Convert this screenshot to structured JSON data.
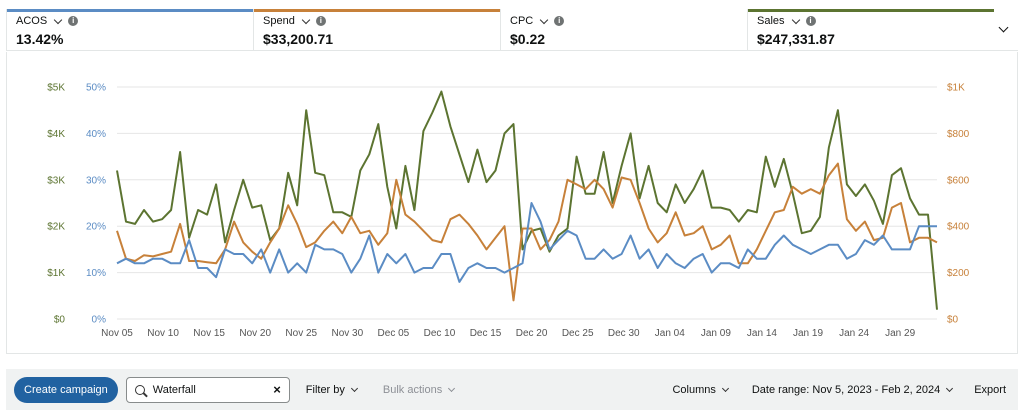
{
  "metrics": [
    {
      "label": "ACOS",
      "value": "13.42%",
      "color": "#5b8cc4"
    },
    {
      "label": "Spend",
      "value": "$33,200.71",
      "color": "#c7813a"
    },
    {
      "label": "CPC",
      "value": "$0.22",
      "color": "#ffffff"
    },
    {
      "label": "Sales",
      "value": "$247,331.87",
      "color": "#5c7431"
    }
  ],
  "info_glyph": "i",
  "chart_data": {
    "type": "line",
    "x_labels": [
      "Nov 05",
      "Nov 10",
      "Nov 15",
      "Nov 20",
      "Nov 25",
      "Nov 30",
      "Dec 05",
      "Dec 10",
      "Dec 15",
      "Dec 20",
      "Dec 25",
      "Dec 30",
      "Jan 04",
      "Jan 09",
      "Jan 14",
      "Jan 19",
      "Jan 24",
      "Jan 29"
    ],
    "x_range": [
      "2023-11-05",
      "2024-02-02"
    ],
    "y_left_ticks": [
      "$0",
      "$1K",
      "$2K",
      "$3K",
      "$4K",
      "$5K"
    ],
    "y_left2_ticks": [
      "0%",
      "10%",
      "20%",
      "30%",
      "40%",
      "50%"
    ],
    "y_right_ticks": [
      "$0",
      "$200",
      "$400",
      "$600",
      "$800",
      "$1K"
    ],
    "grid": true,
    "series": [
      {
        "name": "Sales",
        "axis": "left_dollars",
        "color": "#5c7431",
        "values": [
          3200,
          2100,
          2050,
          2350,
          2100,
          2150,
          2350,
          3600,
          1750,
          2350,
          2250,
          2900,
          1650,
          2350,
          3000,
          2400,
          2450,
          1700,
          1950,
          3150,
          2450,
          4500,
          3150,
          3100,
          2300,
          2300,
          2200,
          3200,
          3550,
          4200,
          2850,
          1950,
          3300,
          2350,
          4050,
          4450,
          4900,
          4150,
          3550,
          2950,
          3650,
          2950,
          3200,
          4000,
          4200,
          1500,
          1900,
          1950,
          1450,
          1800,
          1950,
          3500,
          2700,
          2700,
          3600,
          2500,
          3300,
          4000,
          2600,
          3300,
          2500,
          2300,
          2900,
          2500,
          2800,
          3200,
          2400,
          2400,
          2350,
          2100,
          2350,
          2300,
          3500,
          2850,
          3450,
          2700,
          1850,
          1900,
          2200,
          3700,
          4500,
          2900,
          2650,
          2900,
          2550,
          2050,
          3100,
          3250,
          2600,
          2250,
          2250,
          200
        ]
      },
      {
        "name": "Spend",
        "axis": "right_dollars",
        "color": "#c7813a",
        "values": [
          380,
          260,
          250,
          275,
          270,
          280,
          290,
          410,
          250,
          250,
          245,
          240,
          300,
          420,
          330,
          290,
          260,
          330,
          390,
          490,
          410,
          310,
          330,
          380,
          420,
          370,
          440,
          370,
          380,
          320,
          370,
          600,
          450,
          420,
          380,
          340,
          330,
          430,
          450,
          410,
          360,
          300,
          350,
          400,
          80,
          390,
          390,
          300,
          340,
          420,
          600,
          580,
          560,
          600,
          560,
          480,
          610,
          600,
          500,
          390,
          330,
          370,
          460,
          360,
          370,
          400,
          300,
          320,
          360,
          240,
          240,
          300,
          380,
          460,
          470,
          570,
          540,
          560,
          540,
          620,
          670,
          430,
          380,
          420,
          340,
          350,
          480,
          500,
          330,
          350,
          350,
          330
        ]
      },
      {
        "name": "ACOS",
        "axis": "left_percent",
        "color": "#5b8cc4",
        "values": [
          12,
          13,
          12,
          12,
          13,
          13,
          12,
          12,
          17,
          11,
          11,
          9,
          15,
          14,
          14,
          12,
          15,
          10,
          15,
          10,
          12,
          10,
          16,
          15,
          15,
          14,
          10,
          13,
          18,
          10,
          14,
          12,
          14,
          10,
          11,
          11,
          14,
          14,
          8,
          11,
          12,
          11,
          11,
          10,
          11,
          12,
          25,
          21,
          15,
          17,
          19,
          18,
          13,
          13,
          15,
          13,
          14,
          18,
          13,
          15,
          11,
          14,
          12,
          11,
          13,
          14,
          10,
          12,
          12,
          11,
          15,
          13,
          13,
          16,
          18,
          16,
          15,
          14,
          15,
          16,
          16,
          13,
          14,
          17,
          16,
          18,
          15,
          15,
          15,
          20,
          20,
          20
        ]
      }
    ]
  },
  "toolbar": {
    "create_label": "Create campaign",
    "search_value": "Waterfall",
    "clear_glyph": "×",
    "filter_label": "Filter by",
    "bulk_label": "Bulk actions",
    "columns_label": "Columns",
    "date_range_label": "Date range: Nov 5, 2023 - Feb 2, 2024",
    "export_label": "Export"
  }
}
